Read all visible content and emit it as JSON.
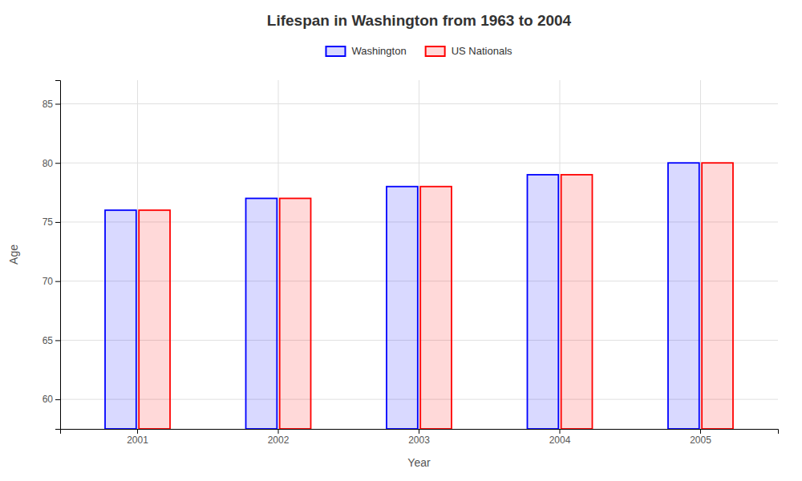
{
  "chart_data": {
    "type": "bar",
    "title": "Lifespan in Washington from 1963 to 2004",
    "xlabel": "Year",
    "ylabel": "Age",
    "categories": [
      "2001",
      "2002",
      "2003",
      "2004",
      "2005"
    ],
    "series": [
      {
        "name": "Washington",
        "color": "#0000ff",
        "values": [
          76,
          77,
          78,
          79,
          80
        ]
      },
      {
        "name": "US Nationals",
        "color": "#ff0000",
        "values": [
          76,
          77,
          78,
          79,
          80
        ]
      }
    ],
    "ylim": [
      57.5,
      87
    ],
    "yticks": [
      60,
      65,
      70,
      75,
      80,
      85
    ],
    "grid": true,
    "legend": "top"
  }
}
